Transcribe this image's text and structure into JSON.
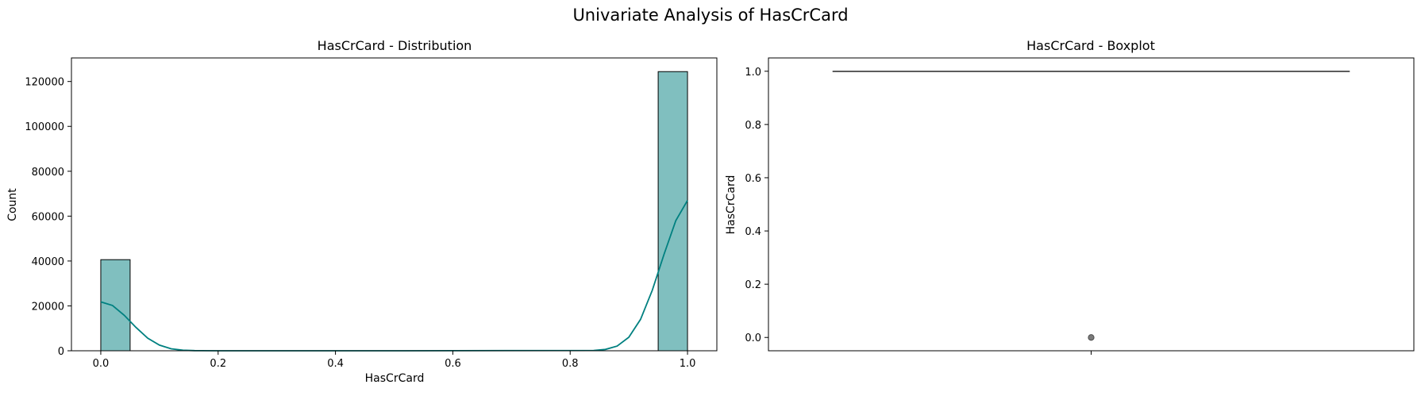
{
  "figure_title": "Univariate Analysis of HasCrCard",
  "colors": {
    "bar_fill": "#80bfbf",
    "bar_edge": "#000000",
    "kde_line": "#008080",
    "box_line": "#4d4d4d",
    "outlier": "#7a7a7a"
  },
  "chart_data": [
    {
      "type": "bar",
      "subtype": "histogram-with-kde",
      "title": "HasCrCard - Distribution",
      "xlabel": "HasCrCard",
      "ylabel": "Count",
      "xlim": [
        -0.05,
        1.05
      ],
      "ylim": [
        0,
        130500
      ],
      "xticks": [
        0.0,
        0.2,
        0.4,
        0.6,
        0.8,
        1.0
      ],
      "xtick_labels": [
        "0.0",
        "0.2",
        "0.4",
        "0.6",
        "0.8",
        "1.0"
      ],
      "yticks": [
        0,
        20000,
        40000,
        60000,
        80000,
        100000,
        120000
      ],
      "ytick_labels": [
        "0",
        "20000",
        "40000",
        "60000",
        "80000",
        "100000",
        "120000"
      ],
      "bins": [
        {
          "start": 0.0,
          "end": 0.05,
          "count": 40600
        },
        {
          "start": 0.95,
          "end": 1.0,
          "count": 124400
        }
      ],
      "kde": {
        "x": [
          0.0,
          0.02,
          0.04,
          0.06,
          0.08,
          0.1,
          0.12,
          0.14,
          0.16,
          0.2,
          0.5,
          0.84,
          0.86,
          0.88,
          0.9,
          0.92,
          0.94,
          0.96,
          0.98,
          1.0
        ],
        "y": [
          21800,
          20200,
          15800,
          10400,
          5600,
          2500,
          900,
          250,
          60,
          0,
          0,
          150,
          600,
          2100,
          6000,
          14000,
          27000,
          43000,
          58000,
          67000
        ]
      },
      "grid": false
    },
    {
      "type": "boxplot",
      "title": "HasCrCard - Boxplot",
      "ylabel": "HasCrCard",
      "xlabel": "",
      "ylim": [
        -0.05,
        1.05
      ],
      "yticks": [
        0.0,
        0.2,
        0.4,
        0.6,
        0.8,
        1.0
      ],
      "ytick_labels": [
        "0.0",
        "0.2",
        "0.4",
        "0.6",
        "0.8",
        "1.0"
      ],
      "box": {
        "q1": 1.0,
        "median": 1.0,
        "q3": 1.0,
        "whisker_low": 1.0,
        "whisker_high": 1.0
      },
      "outliers": [
        0.0
      ],
      "grid": false
    }
  ]
}
